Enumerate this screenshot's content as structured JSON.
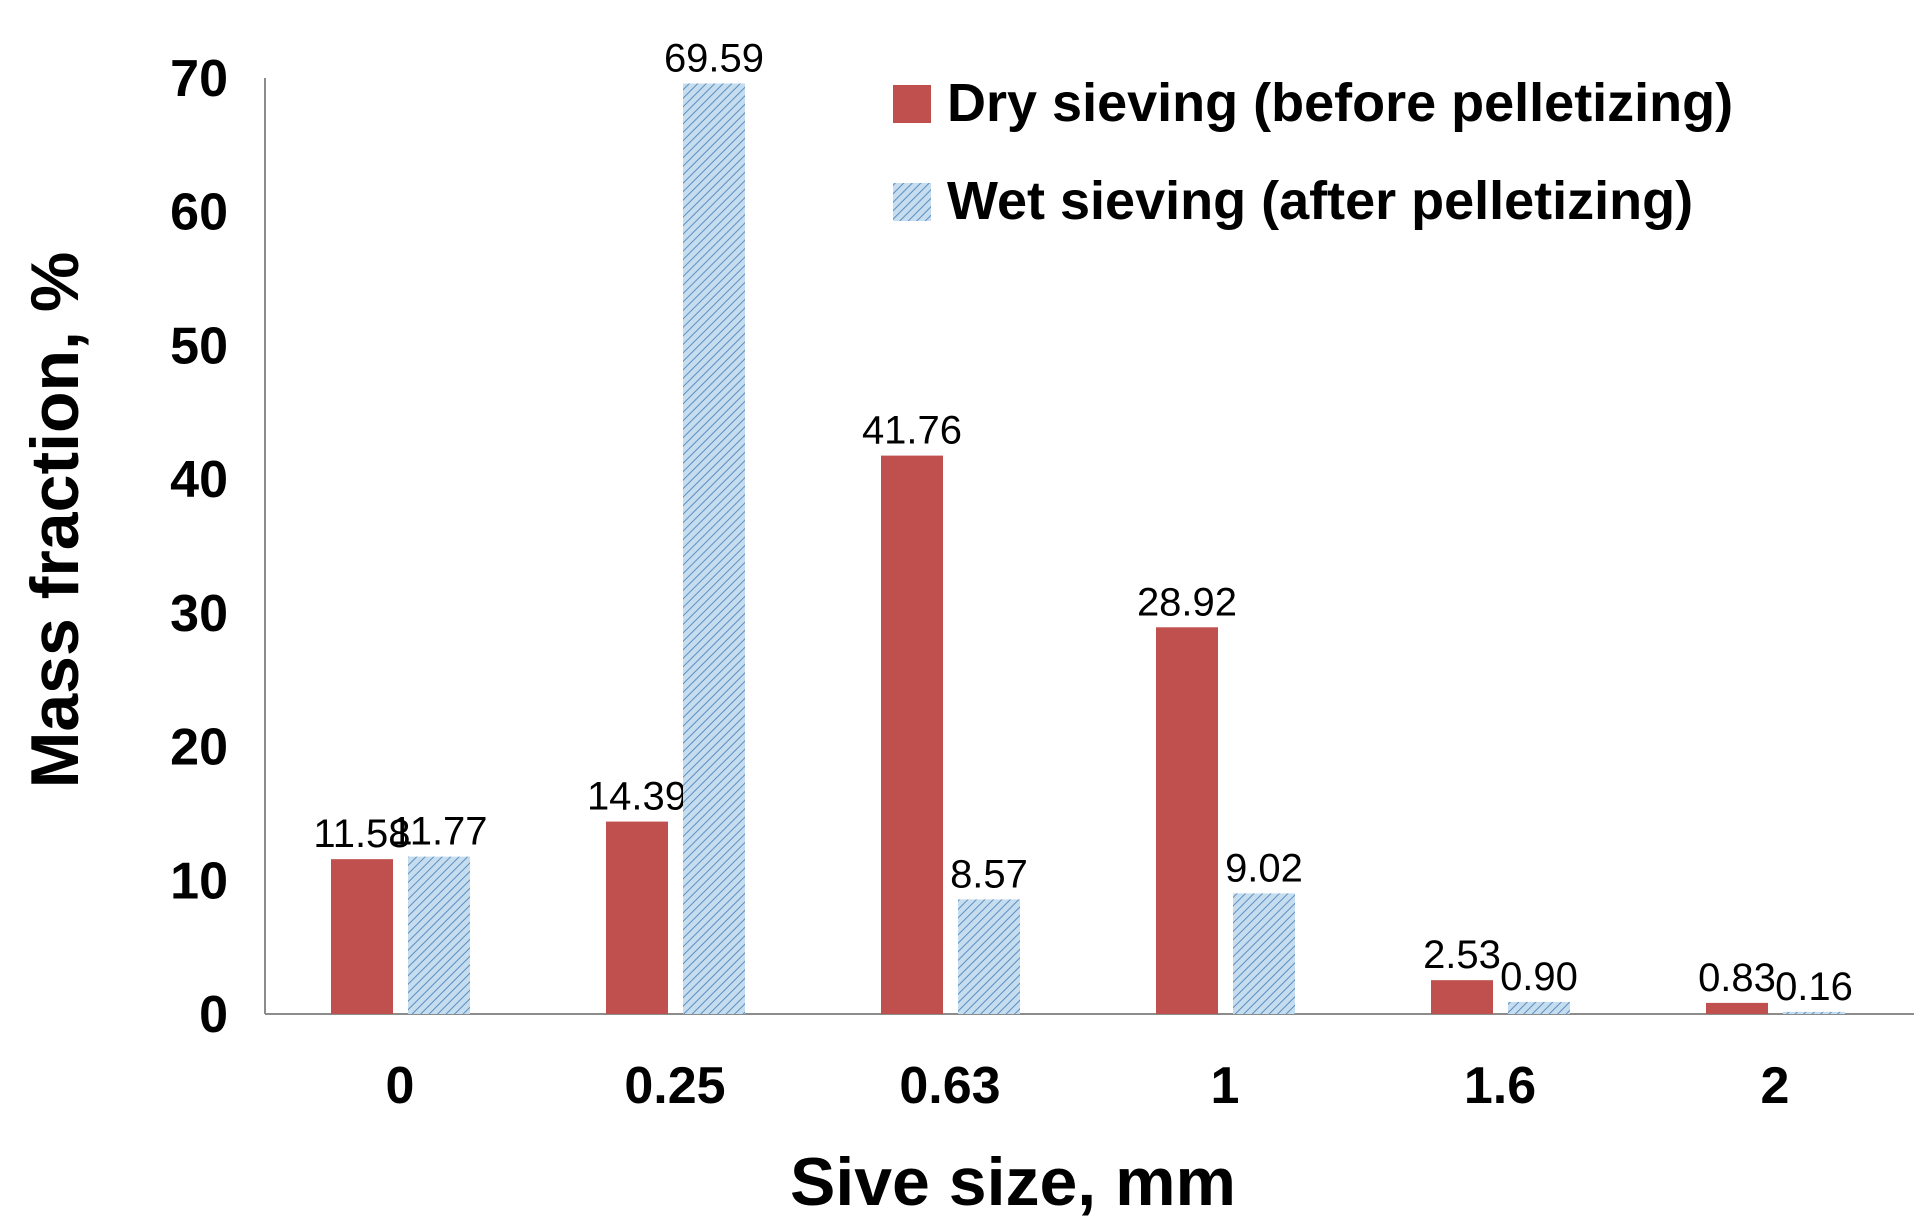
{
  "chart_data": {
    "type": "bar",
    "title": "",
    "xlabel": "Sive size, mm",
    "ylabel": "Mass fraction, %",
    "ylim": [
      0,
      70
    ],
    "yticks": [
      0,
      10,
      20,
      30,
      40,
      50,
      60,
      70
    ],
    "categories": [
      "0",
      "0.25",
      "0.63",
      "1",
      "1.6",
      "2"
    ],
    "series": [
      {
        "name": "Dry sieving (before pelletizing)",
        "values": [
          11.58,
          14.39,
          41.76,
          28.92,
          2.53,
          0.83
        ],
        "labels": [
          "11.58",
          "14.39",
          "41.76",
          "28.92",
          "2.53",
          "0.83"
        ],
        "color": "#c0504d",
        "pattern": "solid"
      },
      {
        "name": "Wet sieving (after pelletizing)",
        "values": [
          11.77,
          69.59,
          8.57,
          9.02,
          0.9,
          0.16
        ],
        "labels": [
          "11.77",
          "69.59",
          "8.57",
          "9.02",
          "0.90",
          "0.16"
        ],
        "color": "#9cc3e5",
        "pattern": "diagonal-hatch"
      }
    ],
    "grid": false,
    "legend_position": "top-right",
    "data_labels": true
  }
}
